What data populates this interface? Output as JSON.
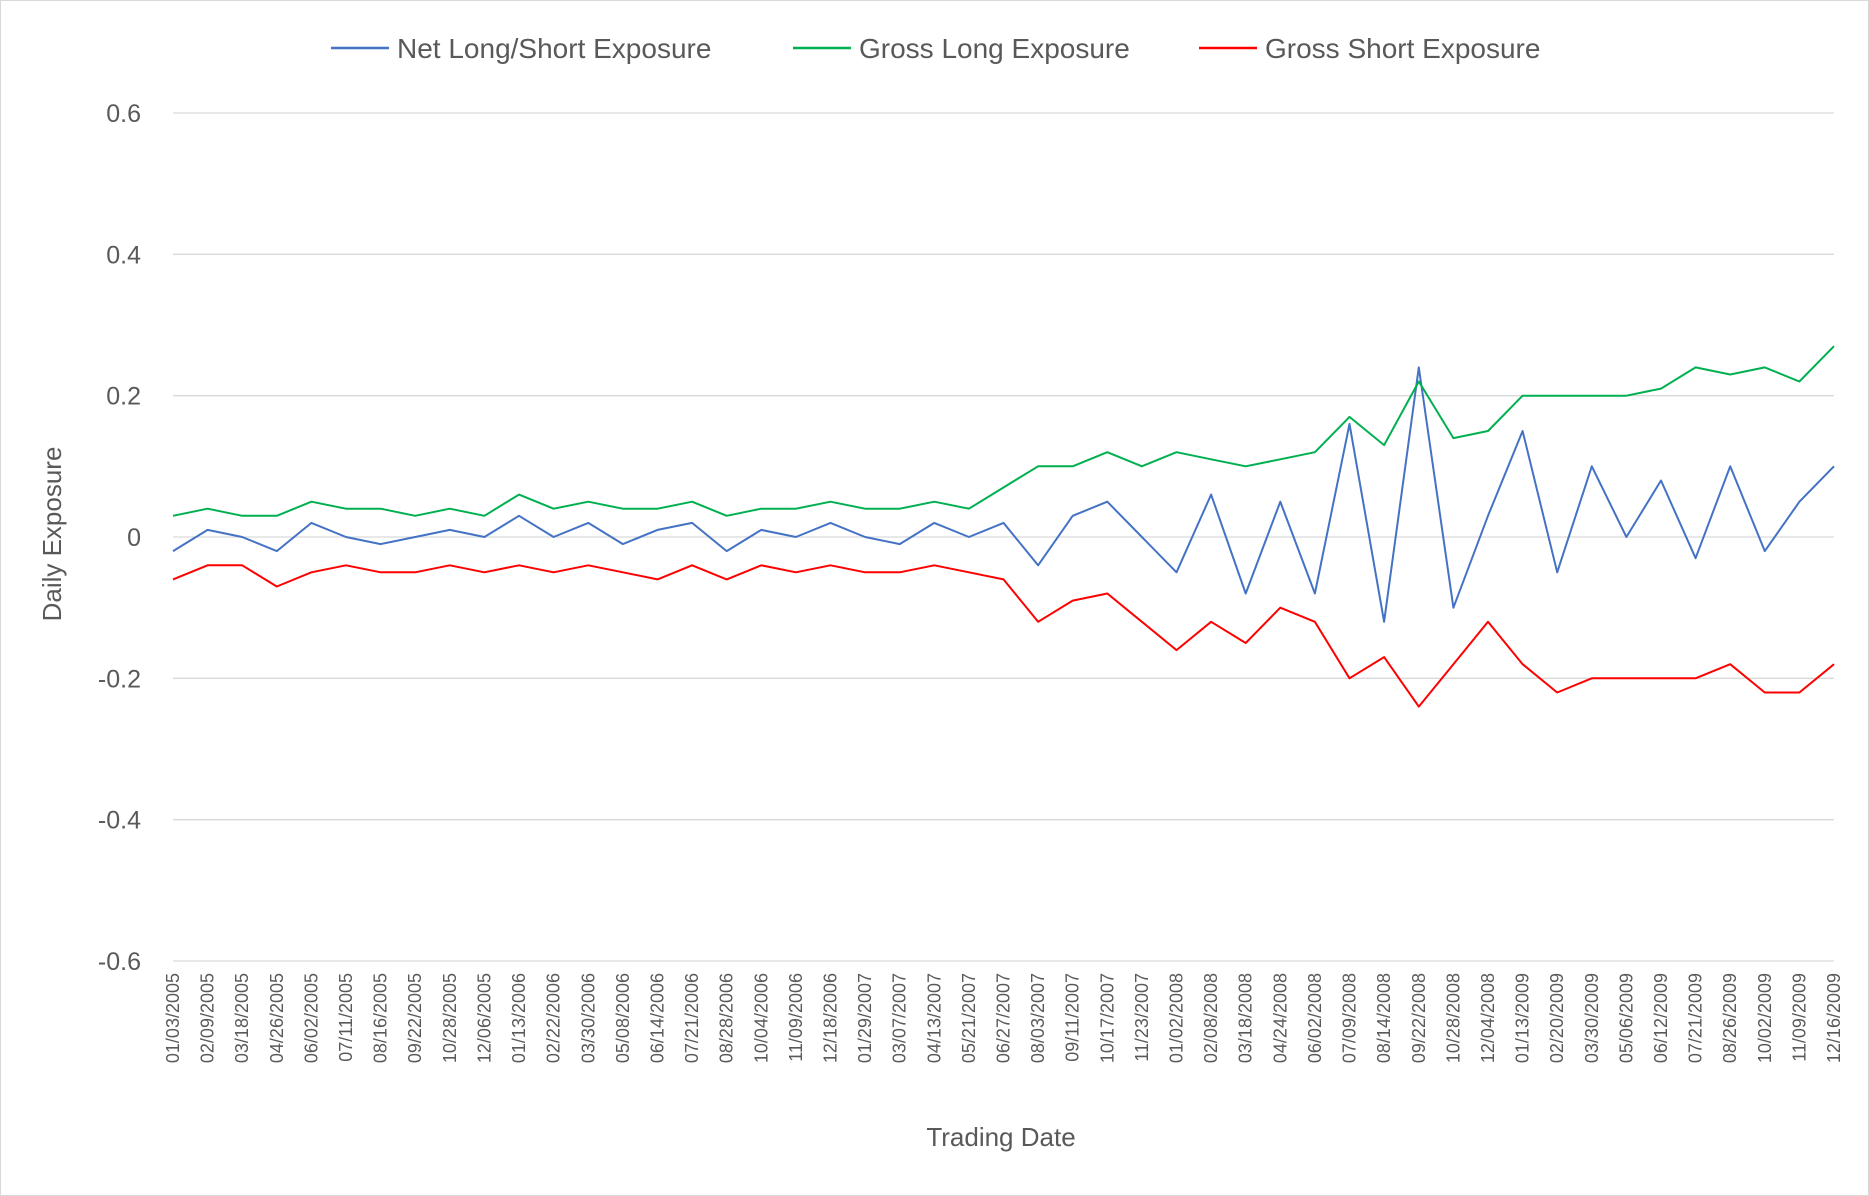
{
  "chart_data": {
    "type": "line",
    "title": "",
    "xlabel": "Trading Date",
    "ylabel": "Daily Exposure",
    "ylim": [
      -0.6,
      0.6
    ],
    "yticks": [
      0.6,
      0.4,
      0.2,
      0,
      -0.2,
      -0.4,
      -0.6
    ],
    "ytick_labels": [
      "0.6",
      "0.4",
      "0.2",
      "0",
      "-0.2",
      "-0.4",
      "-0.6"
    ],
    "grid": true,
    "legend_position": "top",
    "xtick_labels": [
      "01/03/2005",
      "02/09/2005",
      "03/18/2005",
      "04/26/2005",
      "06/02/2005",
      "07/11/2005",
      "08/16/2005",
      "09/22/2005",
      "10/28/2005",
      "12/06/2005",
      "01/13/2006",
      "02/22/2006",
      "03/30/2006",
      "05/08/2006",
      "06/14/2006",
      "07/21/2006",
      "08/28/2006",
      "10/04/2006",
      "11/09/2006",
      "12/18/2006",
      "01/29/2007",
      "03/07/2007",
      "04/13/2007",
      "05/21/2007",
      "06/27/2007",
      "08/03/2007",
      "09/11/2007",
      "10/17/2007",
      "11/23/2007",
      "01/02/2008",
      "02/08/2008",
      "03/18/2008",
      "04/24/2008",
      "06/02/2008",
      "07/09/2008",
      "08/14/2008",
      "09/22/2008",
      "10/28/2008",
      "12/04/2008",
      "01/13/2009",
      "02/20/2009",
      "03/30/2009",
      "05/06/2009",
      "06/12/2009",
      "07/21/2009",
      "08/26/2009",
      "10/02/2009",
      "11/09/2009",
      "12/16/2009"
    ],
    "series": [
      {
        "name": "Net Long/Short Exposure",
        "color": "#4472c4",
        "points": [
          [
            "01/03/2005",
            -0.02
          ],
          [
            "02/09/2005",
            0.01
          ],
          [
            "03/18/2005",
            0.0
          ],
          [
            "04/26/2005",
            -0.02
          ],
          [
            "06/02/2005",
            0.02
          ],
          [
            "07/11/2005",
            0.0
          ],
          [
            "08/16/2005",
            -0.01
          ],
          [
            "09/22/2005",
            0.0
          ],
          [
            "10/28/2005",
            0.01
          ],
          [
            "12/06/2005",
            0.0
          ],
          [
            "01/13/2006",
            0.03
          ],
          [
            "02/22/2006",
            0.0
          ],
          [
            "03/30/2006",
            0.02
          ],
          [
            "05/08/2006",
            -0.01
          ],
          [
            "06/14/2006",
            0.01
          ],
          [
            "07/21/2006",
            0.02
          ],
          [
            "08/28/2006",
            -0.02
          ],
          [
            "10/04/2006",
            0.01
          ],
          [
            "11/09/2006",
            0.0
          ],
          [
            "12/18/2006",
            0.02
          ],
          [
            "01/29/2007",
            0.0
          ],
          [
            "03/07/2007",
            -0.01
          ],
          [
            "04/13/2007",
            0.02
          ],
          [
            "05/21/2007",
            0.0
          ],
          [
            "06/27/2007",
            0.02
          ],
          [
            "08/03/2007",
            -0.04
          ],
          [
            "09/11/2007",
            0.03
          ],
          [
            "10/17/2007",
            0.05
          ],
          [
            "11/23/2007",
            0.0
          ],
          [
            "01/02/2008",
            -0.05
          ],
          [
            "02/08/2008",
            0.06
          ],
          [
            "03/18/2008",
            -0.08
          ],
          [
            "04/24/2008",
            0.05
          ],
          [
            "06/02/2008",
            -0.08
          ],
          [
            "07/09/2008",
            0.16
          ],
          [
            "08/14/2008",
            -0.12
          ],
          [
            "09/22/2008",
            0.24
          ],
          [
            "10/28/2008",
            -0.1
          ],
          [
            "12/04/2008",
            0.03
          ],
          [
            "01/13/2009",
            0.15
          ],
          [
            "02/20/2009",
            -0.05
          ],
          [
            "03/30/2009",
            0.1
          ],
          [
            "05/06/2009",
            0.0
          ],
          [
            "06/12/2009",
            0.08
          ],
          [
            "07/21/2009",
            -0.03
          ],
          [
            "08/26/2009",
            0.1
          ],
          [
            "10/02/2009",
            -0.02
          ],
          [
            "11/09/2009",
            0.05
          ],
          [
            "12/16/2009",
            0.1
          ]
        ]
      },
      {
        "name": "Gross Long Exposure",
        "color": "#00b050",
        "points": [
          [
            "01/03/2005",
            0.03
          ],
          [
            "02/09/2005",
            0.04
          ],
          [
            "03/18/2005",
            0.03
          ],
          [
            "04/26/2005",
            0.03
          ],
          [
            "06/02/2005",
            0.05
          ],
          [
            "07/11/2005",
            0.04
          ],
          [
            "08/16/2005",
            0.04
          ],
          [
            "09/22/2005",
            0.03
          ],
          [
            "10/28/2005",
            0.04
          ],
          [
            "12/06/2005",
            0.03
          ],
          [
            "01/13/2006",
            0.06
          ],
          [
            "02/22/2006",
            0.04
          ],
          [
            "03/30/2006",
            0.05
          ],
          [
            "05/08/2006",
            0.04
          ],
          [
            "06/14/2006",
            0.04
          ],
          [
            "07/21/2006",
            0.05
          ],
          [
            "08/28/2006",
            0.03
          ],
          [
            "10/04/2006",
            0.04
          ],
          [
            "11/09/2006",
            0.04
          ],
          [
            "12/18/2006",
            0.05
          ],
          [
            "01/29/2007",
            0.04
          ],
          [
            "03/07/2007",
            0.04
          ],
          [
            "04/13/2007",
            0.05
          ],
          [
            "05/21/2007",
            0.04
          ],
          [
            "06/27/2007",
            0.07
          ],
          [
            "08/03/2007",
            0.1
          ],
          [
            "09/11/2007",
            0.1
          ],
          [
            "10/17/2007",
            0.12
          ],
          [
            "11/23/2007",
            0.1
          ],
          [
            "01/02/2008",
            0.12
          ],
          [
            "02/08/2008",
            0.11
          ],
          [
            "03/18/2008",
            0.1
          ],
          [
            "04/24/2008",
            0.11
          ],
          [
            "06/02/2008",
            0.12
          ],
          [
            "07/09/2008",
            0.17
          ],
          [
            "08/14/2008",
            0.13
          ],
          [
            "09/22/2008",
            0.22
          ],
          [
            "10/28/2008",
            0.14
          ],
          [
            "12/04/2008",
            0.15
          ],
          [
            "01/13/2009",
            0.2
          ],
          [
            "02/20/2009",
            0.2
          ],
          [
            "03/30/2009",
            0.2
          ],
          [
            "05/06/2009",
            0.2
          ],
          [
            "06/12/2009",
            0.21
          ],
          [
            "07/21/2009",
            0.24
          ],
          [
            "08/26/2009",
            0.23
          ],
          [
            "10/02/2009",
            0.24
          ],
          [
            "11/09/2009",
            0.22
          ],
          [
            "12/16/2009",
            0.27
          ]
        ]
      },
      {
        "name": "Gross Short Exposure",
        "color": "#ff0000",
        "points": [
          [
            "01/03/2005",
            -0.06
          ],
          [
            "02/09/2005",
            -0.04
          ],
          [
            "03/18/2005",
            -0.04
          ],
          [
            "04/26/2005",
            -0.07
          ],
          [
            "06/02/2005",
            -0.05
          ],
          [
            "07/11/2005",
            -0.04
          ],
          [
            "08/16/2005",
            -0.05
          ],
          [
            "09/22/2005",
            -0.05
          ],
          [
            "10/28/2005",
            -0.04
          ],
          [
            "12/06/2005",
            -0.05
          ],
          [
            "01/13/2006",
            -0.04
          ],
          [
            "02/22/2006",
            -0.05
          ],
          [
            "03/30/2006",
            -0.04
          ],
          [
            "05/08/2006",
            -0.05
          ],
          [
            "06/14/2006",
            -0.06
          ],
          [
            "07/21/2006",
            -0.04
          ],
          [
            "08/28/2006",
            -0.06
          ],
          [
            "10/04/2006",
            -0.04
          ],
          [
            "11/09/2006",
            -0.05
          ],
          [
            "12/18/2006",
            -0.04
          ],
          [
            "01/29/2007",
            -0.05
          ],
          [
            "03/07/2007",
            -0.05
          ],
          [
            "04/13/2007",
            -0.04
          ],
          [
            "05/21/2007",
            -0.05
          ],
          [
            "06/27/2007",
            -0.06
          ],
          [
            "08/03/2007",
            -0.12
          ],
          [
            "09/11/2007",
            -0.09
          ],
          [
            "10/17/2007",
            -0.08
          ],
          [
            "11/23/2007",
            -0.12
          ],
          [
            "01/02/2008",
            -0.16
          ],
          [
            "02/08/2008",
            -0.12
          ],
          [
            "03/18/2008",
            -0.15
          ],
          [
            "04/24/2008",
            -0.1
          ],
          [
            "06/02/2008",
            -0.12
          ],
          [
            "07/09/2008",
            -0.2
          ],
          [
            "08/14/2008",
            -0.17
          ],
          [
            "09/22/2008",
            -0.24
          ],
          [
            "10/28/2008",
            -0.18
          ],
          [
            "12/04/2008",
            -0.12
          ],
          [
            "01/13/2009",
            -0.18
          ],
          [
            "02/20/2009",
            -0.22
          ],
          [
            "03/30/2009",
            -0.2
          ],
          [
            "05/06/2009",
            -0.2
          ],
          [
            "06/12/2009",
            -0.2
          ],
          [
            "07/21/2009",
            -0.2
          ],
          [
            "08/26/2009",
            -0.18
          ],
          [
            "10/02/2009",
            -0.22
          ],
          [
            "11/09/2009",
            -0.22
          ],
          [
            "12/16/2009",
            -0.18
          ]
        ]
      }
    ]
  }
}
